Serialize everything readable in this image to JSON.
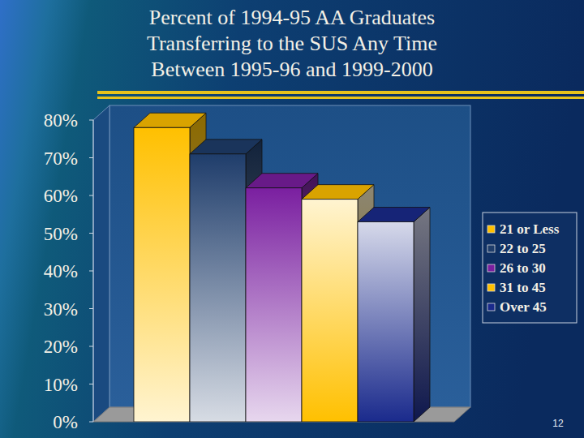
{
  "chart_data": {
    "type": "bar",
    "title": [
      "Percent of 1994-95 AA Graduates",
      "Transferring to the SUS Any Time",
      "Between 1995-96 and 1999-2000"
    ],
    "categories": [
      "21 or Less",
      "22 to 25",
      "26 to 30",
      "31 to 45",
      "Over 45"
    ],
    "values": [
      78,
      71,
      62,
      59,
      53
    ],
    "colors": [
      "#ffc000",
      "#1f3d6b",
      "#7a1fa0",
      "#ffc000",
      "#1a2a8c"
    ],
    "ylim": [
      0,
      80
    ],
    "yticks": [
      {
        "value": 0,
        "label": "0%"
      },
      {
        "value": 10,
        "label": "10%"
      },
      {
        "value": 20,
        "label": "20%"
      },
      {
        "value": 30,
        "label": "30%"
      },
      {
        "value": 40,
        "label": "40%"
      },
      {
        "value": 50,
        "label": "50%"
      },
      {
        "value": 60,
        "label": "60%"
      },
      {
        "value": 70,
        "label": "70%"
      },
      {
        "value": 80,
        "label": "80%"
      }
    ],
    "grid": false,
    "legend": "right",
    "tick_labels": "y"
  },
  "page_number": "12"
}
